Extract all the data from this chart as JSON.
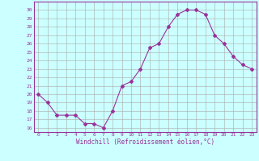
{
  "hours": [
    0,
    1,
    2,
    3,
    4,
    5,
    6,
    7,
    8,
    9,
    10,
    11,
    12,
    13,
    14,
    15,
    16,
    17,
    18,
    19,
    20,
    21,
    22,
    23
  ],
  "temps": [
    20,
    19,
    17.5,
    17.5,
    17.5,
    16.5,
    16.5,
    16,
    18,
    21,
    21.5,
    23,
    25.5,
    26,
    28,
    29.5,
    30,
    30,
    29.5,
    27,
    26,
    24.5,
    23.5,
    23
  ],
  "line_color": "#993399",
  "marker": "D",
  "marker_size": 2,
  "bg_color": "#ccffff",
  "grid_color": "#aaaaaa",
  "xlabel": "Windchill (Refroidissement éolien,°C)",
  "xlabel_color": "#993399",
  "tick_color": "#993399",
  "ylim": [
    15.5,
    31
  ],
  "xlim": [
    -0.5,
    23.5
  ],
  "yticks": [
    16,
    17,
    18,
    19,
    20,
    21,
    22,
    23,
    24,
    25,
    26,
    27,
    28,
    29,
    30
  ],
  "xticks": [
    0,
    1,
    2,
    3,
    4,
    5,
    6,
    7,
    8,
    9,
    10,
    11,
    12,
    13,
    14,
    15,
    16,
    17,
    18,
    19,
    20,
    21,
    22,
    23
  ]
}
